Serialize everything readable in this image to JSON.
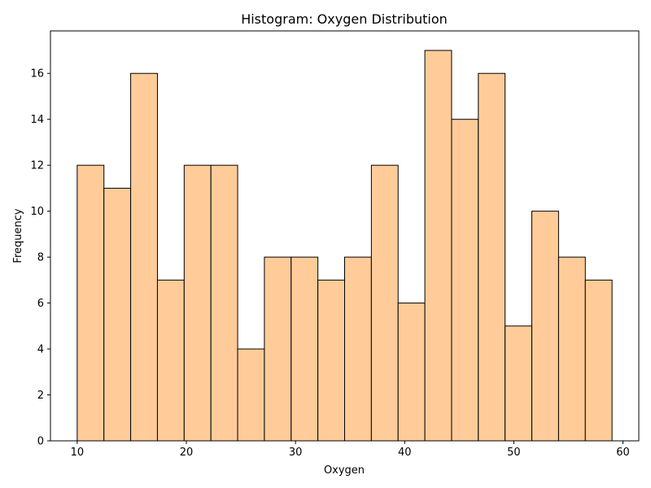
{
  "chart_data": {
    "type": "bar",
    "title": "Histogram: Oxygen Distribution",
    "xlabel": "Oxygen",
    "ylabel": "Frequency",
    "bin_edges": [
      10,
      12.45,
      14.9,
      17.35,
      19.8,
      22.25,
      24.7,
      27.15,
      29.6,
      32.05,
      34.5,
      36.95,
      39.4,
      41.85,
      44.3,
      46.75,
      49.2,
      51.65,
      54.1,
      56.55,
      59
    ],
    "values": [
      12,
      11,
      16,
      7,
      12,
      12,
      4,
      8,
      8,
      7,
      8,
      12,
      6,
      17,
      14,
      16,
      5,
      10,
      8,
      7
    ],
    "xlim": [
      7.55,
      61.45
    ],
    "ylim": [
      0,
      17.85
    ],
    "xticks": [
      10,
      20,
      30,
      40,
      50,
      60
    ],
    "yticks": [
      0,
      2,
      4,
      6,
      8,
      10,
      12,
      14,
      16
    ],
    "bar_color": "#ffcc99",
    "edge_color": "#000000",
    "grid": false,
    "legend": "none"
  }
}
